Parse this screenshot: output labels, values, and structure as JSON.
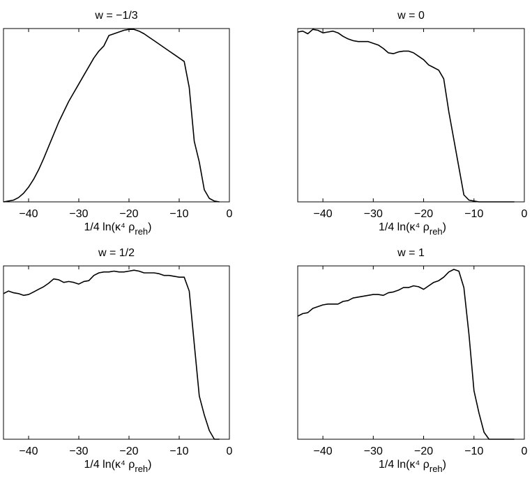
{
  "figure": {
    "background": "#ffffff",
    "line_color": "#000000"
  },
  "chart_data": [
    {
      "type": "line",
      "title": "w = −1/3",
      "xlabel": "1/4 ln(κ⁴ ρreh)",
      "ylabel": "",
      "xlim": [
        -45,
        0
      ],
      "ylim": [
        0,
        1
      ],
      "xticks": [
        -40,
        -30,
        -20,
        -10,
        0
      ],
      "xtick_labels": [
        "−40",
        "−30",
        "−20",
        "−10",
        "0"
      ],
      "series": [
        {
          "x": [
            -45,
            -44,
            -43,
            -42,
            -41,
            -40,
            -39,
            -38,
            -37,
            -36,
            -35,
            -34,
            -33,
            -32,
            -31,
            -30,
            -29,
            -28,
            -27,
            -26,
            -25,
            -24,
            -23,
            -22,
            -21,
            -20,
            -19,
            -18,
            -17,
            -16,
            -15,
            -14,
            -13,
            -12,
            -11,
            -10,
            -9,
            -8,
            -7,
            -6,
            -5,
            -4,
            -3,
            -2
          ],
          "y": [
            0.0,
            0.005,
            0.01,
            0.025,
            0.05,
            0.085,
            0.13,
            0.185,
            0.25,
            0.32,
            0.39,
            0.46,
            0.52,
            0.58,
            0.63,
            0.68,
            0.73,
            0.78,
            0.83,
            0.87,
            0.9,
            0.96,
            0.97,
            0.98,
            0.99,
            0.995,
            0.995,
            0.985,
            0.97,
            0.95,
            0.93,
            0.91,
            0.89,
            0.87,
            0.85,
            0.83,
            0.81,
            0.66,
            0.35,
            0.23,
            0.07,
            0.02,
            0.005,
            0.0
          ]
        }
      ]
    },
    {
      "type": "line",
      "title": "w = 0",
      "xlabel": "1/4 ln(κ⁴ ρreh)",
      "ylabel": "",
      "xlim": [
        -45,
        0
      ],
      "ylim": [
        0,
        1
      ],
      "xticks": [
        -40,
        -30,
        -20,
        -10,
        0
      ],
      "xtick_labels": [
        "−40",
        "−30",
        "−20",
        "−10",
        "0"
      ],
      "series": [
        {
          "x": [
            -45,
            -44,
            -43,
            -42,
            -41,
            -40,
            -39,
            -38,
            -37,
            -36,
            -35,
            -34,
            -33,
            -32,
            -31,
            -30,
            -29,
            -28,
            -27,
            -26,
            -25,
            -24,
            -23,
            -22,
            -21,
            -20,
            -19,
            -18,
            -17,
            -16,
            -15,
            -14,
            -13,
            -12,
            -11,
            -10,
            -9,
            -8,
            -7,
            -6,
            -5,
            -4,
            -3,
            -2
          ],
          "y": [
            0.98,
            0.985,
            0.97,
            0.995,
            0.99,
            0.975,
            0.98,
            0.985,
            0.975,
            0.955,
            0.94,
            0.93,
            0.925,
            0.925,
            0.925,
            0.915,
            0.905,
            0.885,
            0.86,
            0.855,
            0.865,
            0.87,
            0.87,
            0.86,
            0.84,
            0.82,
            0.79,
            0.775,
            0.76,
            0.71,
            0.52,
            0.36,
            0.2,
            0.04,
            0.01,
            0.005,
            0.0,
            0.0,
            0.0,
            0.0,
            0.0,
            0.0,
            0.0,
            0.0
          ]
        }
      ]
    },
    {
      "type": "line",
      "title": "w = 1/2",
      "xlabel": "1/4 ln(κ⁴ ρreh)",
      "ylabel": "",
      "xlim": [
        -45,
        0
      ],
      "ylim": [
        0,
        1
      ],
      "xticks": [
        -40,
        -30,
        -20,
        -10,
        0
      ],
      "xtick_labels": [
        "−40",
        "−30",
        "−20",
        "−10",
        "0"
      ],
      "series": [
        {
          "x": [
            -45,
            -44,
            -43,
            -42,
            -41,
            -40,
            -39,
            -38,
            -37,
            -36,
            -35,
            -34,
            -33,
            -32,
            -31,
            -30,
            -29,
            -28,
            -27,
            -26,
            -25,
            -24,
            -23,
            -22,
            -21,
            -20,
            -19,
            -18,
            -17,
            -16,
            -15,
            -14,
            -13,
            -12,
            -11,
            -10,
            -9,
            -8,
            -7,
            -6,
            -5,
            -4,
            -3,
            -2
          ],
          "y": [
            0.84,
            0.855,
            0.845,
            0.84,
            0.83,
            0.835,
            0.85,
            0.865,
            0.88,
            0.9,
            0.925,
            0.92,
            0.905,
            0.91,
            0.905,
            0.895,
            0.91,
            0.915,
            0.945,
            0.96,
            0.965,
            0.965,
            0.97,
            0.965,
            0.965,
            0.97,
            0.975,
            0.97,
            0.96,
            0.96,
            0.96,
            0.955,
            0.945,
            0.945,
            0.94,
            0.935,
            0.935,
            0.855,
            0.55,
            0.25,
            0.14,
            0.05,
            0.0,
            0.0
          ]
        }
      ]
    },
    {
      "type": "line",
      "title": "w = 1",
      "xlabel": "1/4 ln(κ⁴ ρreh)",
      "ylabel": "",
      "xlim": [
        -45,
        0
      ],
      "ylim": [
        0,
        1
      ],
      "xticks": [
        -40,
        -30,
        -20,
        -10,
        0
      ],
      "xtick_labels": [
        "−40",
        "−30",
        "−20",
        "−10",
        "0"
      ],
      "series": [
        {
          "x": [
            -45,
            -44,
            -43,
            -42,
            -41,
            -40,
            -39,
            -38,
            -37,
            -36,
            -35,
            -34,
            -33,
            -32,
            -31,
            -30,
            -29,
            -28,
            -27,
            -26,
            -25,
            -24,
            -23,
            -22,
            -21,
            -20,
            -19,
            -18,
            -17,
            -16,
            -15,
            -14,
            -13,
            -12,
            -11,
            -10,
            -9,
            -8,
            -7,
            -6,
            -5,
            -4,
            -3,
            -2
          ],
          "y": [
            0.71,
            0.725,
            0.73,
            0.755,
            0.765,
            0.775,
            0.78,
            0.78,
            0.78,
            0.795,
            0.8,
            0.815,
            0.82,
            0.825,
            0.83,
            0.835,
            0.835,
            0.83,
            0.845,
            0.85,
            0.86,
            0.875,
            0.875,
            0.885,
            0.88,
            0.865,
            0.885,
            0.905,
            0.915,
            0.935,
            0.965,
            0.98,
            0.97,
            0.875,
            0.605,
            0.28,
            0.15,
            0.04,
            0.0,
            0.0,
            0.0,
            0.0,
            0.0,
            0.0
          ]
        }
      ]
    }
  ]
}
